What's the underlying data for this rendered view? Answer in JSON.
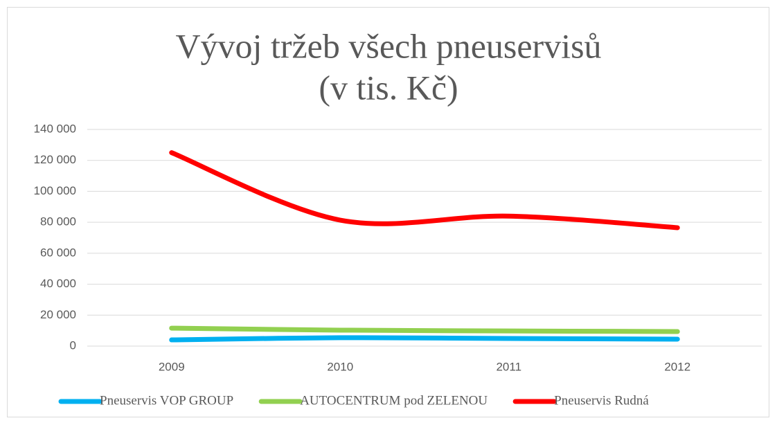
{
  "chart_data": {
    "type": "line",
    "title": [
      "Vývoj tržeb všech pneuservisů",
      "(v tis. Kč)"
    ],
    "categories": [
      "2009",
      "2010",
      "2011",
      "2012"
    ],
    "series": [
      {
        "name": "Pneuservis VOP GROUP",
        "color": "#00b0f0",
        "values": [
          4000,
          5400,
          4900,
          4500
        ]
      },
      {
        "name": "AUTOCENTRUM pod ZELENOU",
        "color": "#92d050",
        "values": [
          11600,
          10300,
          9800,
          9400
        ]
      },
      {
        "name": "Pneuservis Rudná",
        "color": "#ff0000",
        "values": [
          125000,
          81400,
          84000,
          76500
        ]
      }
    ],
    "ylim": [
      0,
      140000
    ],
    "yticks": [
      {
        "value": 0,
        "label": "0"
      },
      {
        "value": 20000,
        "label": "20 000"
      },
      {
        "value": 40000,
        "label": "40 000"
      },
      {
        "value": 60000,
        "label": "60 000"
      },
      {
        "value": 80000,
        "label": "80 000"
      },
      {
        "value": 100000,
        "label": "100 000"
      },
      {
        "value": 120000,
        "label": "120 000"
      },
      {
        "value": 140000,
        "label": "140 000"
      }
    ],
    "grid": true,
    "smooth": true,
    "legend": "bottom"
  }
}
